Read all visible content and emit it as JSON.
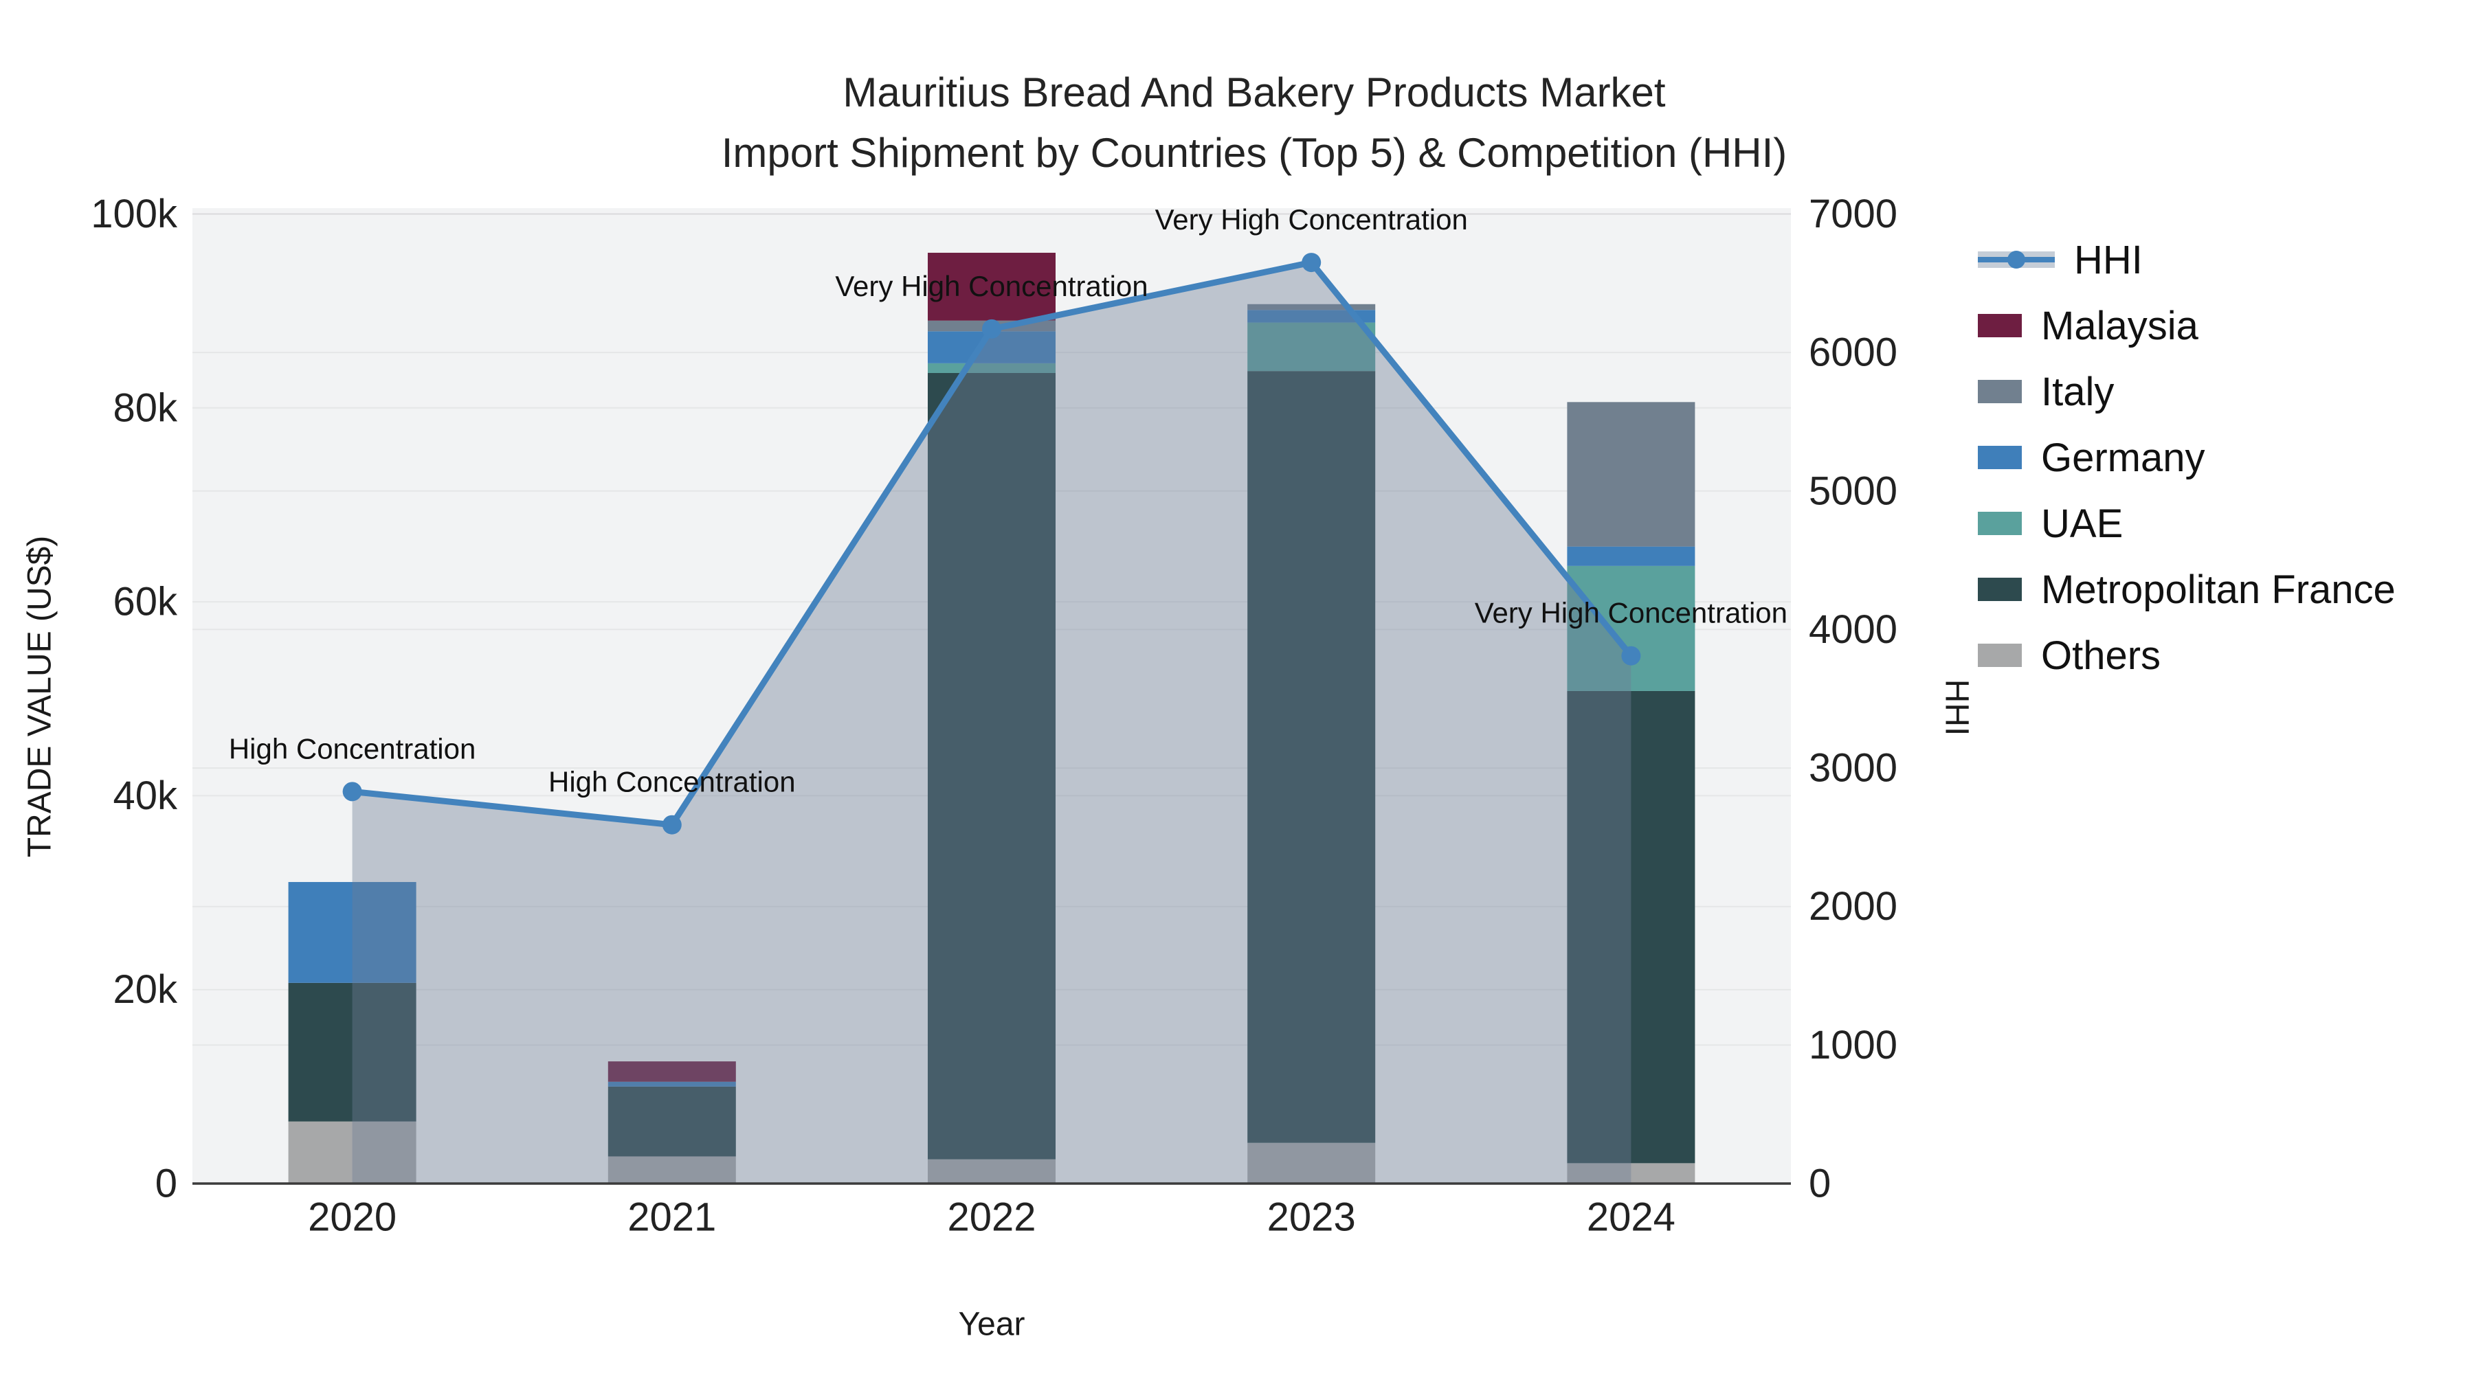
{
  "title": {
    "line1": "Mauritius Bread And Bakery Products Market",
    "line2": "Import Shipment by Countries (Top 5) & Competition (HHI)"
  },
  "axes": {
    "y_left": {
      "title": "TRADE VALUE (US$)",
      "ticks": [
        "0",
        "20k",
        "40k",
        "60k",
        "80k",
        "100k"
      ]
    },
    "y_right": {
      "title": "HHI",
      "ticks": [
        "0",
        "1000",
        "2000",
        "3000",
        "4000",
        "5000",
        "6000",
        "7000"
      ]
    },
    "x": {
      "title": "Year",
      "ticks": [
        "2020",
        "2021",
        "2022",
        "2023",
        "2024"
      ]
    }
  },
  "legend": [
    {
      "label": "HHI",
      "swatch": "line",
      "color": "#4383bd"
    },
    {
      "label": "Malaysia",
      "swatch": "square",
      "color": "#6e1e41"
    },
    {
      "label": "Italy",
      "swatch": "square",
      "color": "#71808f"
    },
    {
      "label": "Germany",
      "swatch": "square",
      "color": "#3f7fba"
    },
    {
      "label": "UAE",
      "swatch": "square",
      "color": "#5aa19d"
    },
    {
      "label": "Metropolitan France",
      "swatch": "square",
      "color": "#2d4a4e"
    },
    {
      "label": "Others",
      "swatch": "square",
      "color": "#a7a8a9"
    }
  ],
  "chart_data": {
    "type": "combo",
    "title": "Mauritius Bread And Bakery Products Market — Import Shipment by Countries (Top 5) & Competition (HHI)",
    "xlabel": "Year",
    "ylabel": "TRADE VALUE (US$)",
    "y2label": "HHI",
    "categories": [
      "2020",
      "2021",
      "2022",
      "2023",
      "2024"
    ],
    "ylim": [
      0,
      100000
    ],
    "y2lim": [
      0,
      7000
    ],
    "grid": true,
    "legend_position": "right",
    "bar_mode": "stacked",
    "bar_series": [
      {
        "name": "Others",
        "color": "#a7a8a9",
        "values": [
          6400,
          2800,
          2500,
          4200,
          2100
        ]
      },
      {
        "name": "Metropolitan France",
        "color": "#2d4a4e",
        "values": [
          14300,
          7200,
          81100,
          79600,
          48700
        ]
      },
      {
        "name": "UAE",
        "color": "#5aa19d",
        "values": [
          0,
          0,
          1000,
          5000,
          12900
        ]
      },
      {
        "name": "Germany",
        "color": "#3f7fba",
        "values": [
          10400,
          500,
          3300,
          1300,
          2000
        ]
      },
      {
        "name": "Italy",
        "color": "#71808f",
        "values": [
          0,
          0,
          1100,
          600,
          14900
        ]
      },
      {
        "name": "Malaysia",
        "color": "#6e1e41",
        "values": [
          0,
          2100,
          7000,
          0,
          0
        ]
      }
    ],
    "line_series": {
      "name": "HHI",
      "axis": "right",
      "color": "#4383bd",
      "fill_color": "rgba(110,125,150,0.4)",
      "values": [
        2830,
        2590,
        6170,
        6650,
        3810
      ]
    },
    "annotations": [
      "High Concentration",
      "High Concentration",
      "Very High Concentration",
      "Very High Concentration",
      "Very High Concentration"
    ],
    "bar_totals": [
      31100,
      12600,
      96000,
      90700,
      80600
    ]
  }
}
